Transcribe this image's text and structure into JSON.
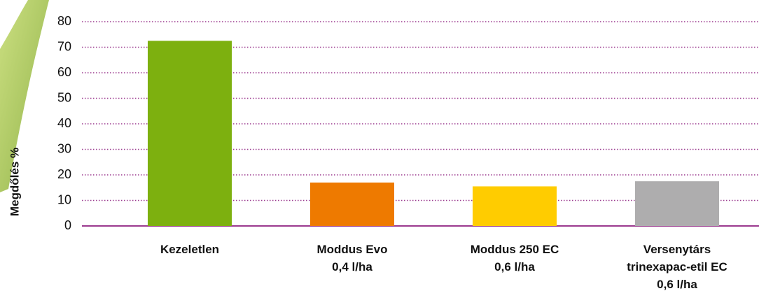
{
  "chart_data": {
    "type": "bar",
    "y_label": "Megdőlés %",
    "categories": [
      [
        "Kezeletlen"
      ],
      [
        "Moddus Evo",
        "0,4 l/ha"
      ],
      [
        "Moddus 250 EC",
        "0,6 l/ha"
      ],
      [
        "Versenytárs",
        "trinexapac-etil EC",
        "0,6 l/ha"
      ]
    ],
    "values": [
      72.5,
      17,
      15.5,
      17.5
    ],
    "colors": [
      "#7db00f",
      "#ee7a00",
      "#ffcc00",
      "#aeadae"
    ],
    "ylim": [
      0,
      80
    ],
    "yticks": [
      0,
      10,
      20,
      30,
      40,
      50,
      60,
      70,
      80
    ],
    "grid": true
  }
}
